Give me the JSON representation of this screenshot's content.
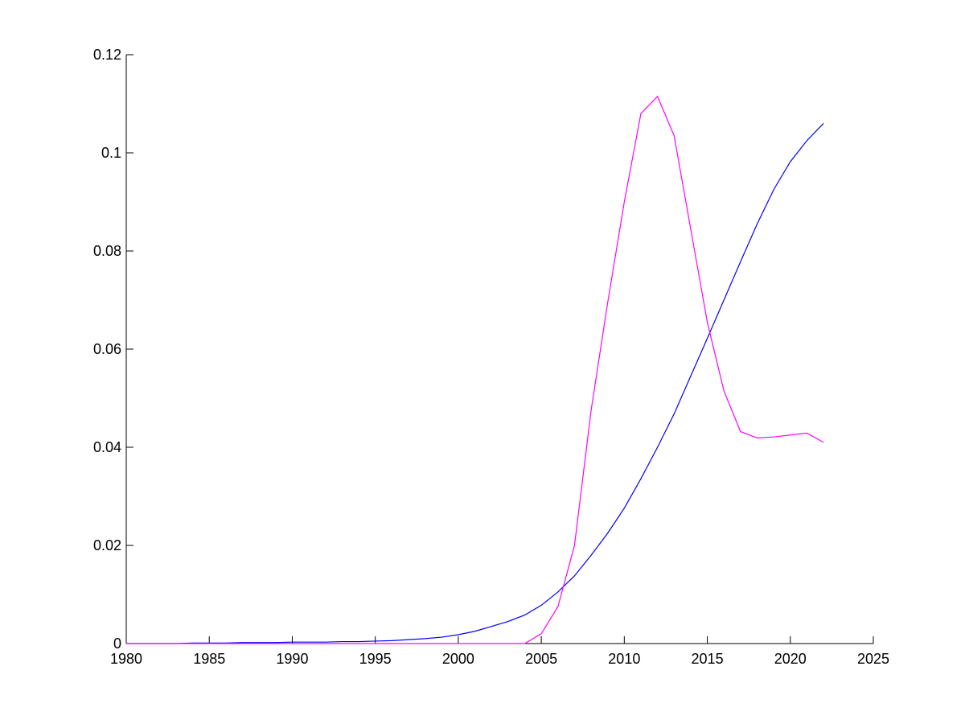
{
  "chart_data": {
    "type": "line",
    "x": [
      1980,
      1981,
      1982,
      1983,
      1984,
      1985,
      1986,
      1987,
      1988,
      1989,
      1990,
      1991,
      1992,
      1993,
      1994,
      1995,
      1996,
      1997,
      1998,
      1999,
      2000,
      2001,
      2002,
      2003,
      2004,
      2005,
      2006,
      2007,
      2008,
      2009,
      2010,
      2011,
      2012,
      2013,
      2014,
      2015,
      2016,
      2017,
      2018,
      2019,
      2020,
      2021,
      2022
    ],
    "series": [
      {
        "color": "#0000ff",
        "values": [
          0,
          0,
          0,
          0,
          0.0001,
          0.0001,
          0.0001,
          0.0002,
          0.0002,
          0.0002,
          0.0003,
          0.0003,
          0.0003,
          0.0004,
          0.0004,
          0.0005,
          0.0006,
          0.0008,
          0.001,
          0.0013,
          0.0018,
          0.0025,
          0.0035,
          0.0045,
          0.0058,
          0.0078,
          0.0105,
          0.0138,
          0.018,
          0.0225,
          0.0276,
          0.0336,
          0.04,
          0.0468,
          0.0545,
          0.0622,
          0.07,
          0.0778,
          0.0855,
          0.0925,
          0.0982,
          0.1025,
          0.106
        ]
      },
      {
        "color": "#ff00ff",
        "values": [
          0,
          0,
          0,
          0,
          0,
          0,
          0,
          0,
          0,
          0,
          0,
          0,
          0,
          0,
          0,
          0,
          0,
          0,
          0,
          0,
          0,
          0,
          0,
          0,
          0,
          0.002,
          0.0075,
          0.02,
          0.0475,
          0.0695,
          0.09,
          0.108,
          0.1115,
          0.1035,
          0.0845,
          0.0655,
          0.0515,
          0.0432,
          0.0419,
          0.0421,
          0.0425,
          0.0429,
          0.041
        ]
      }
    ],
    "xlim": [
      1980,
      2025
    ],
    "xticks": [
      1980,
      1985,
      1990,
      1995,
      2000,
      2005,
      2010,
      2015,
      2020,
      2025
    ],
    "ylim": [
      0,
      0.12
    ],
    "yticks": [
      0,
      0.02,
      0.04,
      0.06,
      0.08,
      0.1,
      0.12
    ]
  }
}
